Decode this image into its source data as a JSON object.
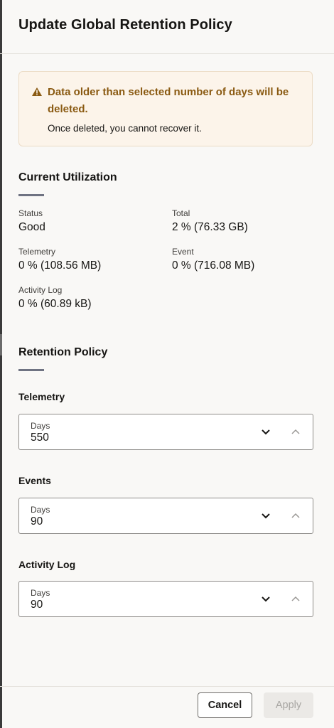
{
  "dialog": {
    "title": "Update Global Retention Policy"
  },
  "warning": {
    "title": "Data older than selected number of days will be deleted.",
    "text": "Once deleted, you cannot recover it.",
    "icon": "warning-triangle-icon",
    "color": "#8a5a12"
  },
  "utilization": {
    "title": "Current Utilization",
    "fields": [
      {
        "label": "Status",
        "value": "Good"
      },
      {
        "label": "Total",
        "value": "2 % (76.33 GB)"
      },
      {
        "label": "Telemetry",
        "value": "0 % (108.56 MB)"
      },
      {
        "label": "Event",
        "value": "0 % (716.08 MB)"
      },
      {
        "label": "Activity Log",
        "value": "0 % (60.89 kB)"
      }
    ]
  },
  "retention": {
    "title": "Retention Policy",
    "groups": [
      {
        "label": "Telemetry",
        "field_label": "Days",
        "value": "550"
      },
      {
        "label": "Events",
        "field_label": "Days",
        "value": "90"
      },
      {
        "label": "Activity Log",
        "field_label": "Days",
        "value": "90"
      }
    ]
  },
  "footer": {
    "cancel_label": "Cancel",
    "apply_label": "Apply"
  }
}
